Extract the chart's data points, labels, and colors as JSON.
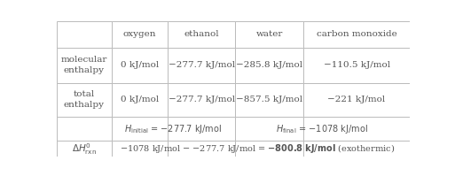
{
  "figsize": [
    5.13,
    1.99
  ],
  "dpi": 100,
  "bg_color": "#ffffff",
  "border_color": "#bbbbbb",
  "text_color": "#555555",
  "col_headers": [
    "oxygen",
    "ethanol",
    "water",
    "carbon monoxide"
  ],
  "molecular_enthalpy": [
    "0 kJ/mol",
    "−277.7 kJ/mol",
    "−285.8 kJ/mol",
    "−110.5 kJ/mol"
  ],
  "total_enthalpy": [
    "0 kJ/mol",
    "−277.7 kJ/mol",
    "−857.5 kJ/mol",
    "−221 kJ/mol"
  ],
  "font_size": 7.5
}
